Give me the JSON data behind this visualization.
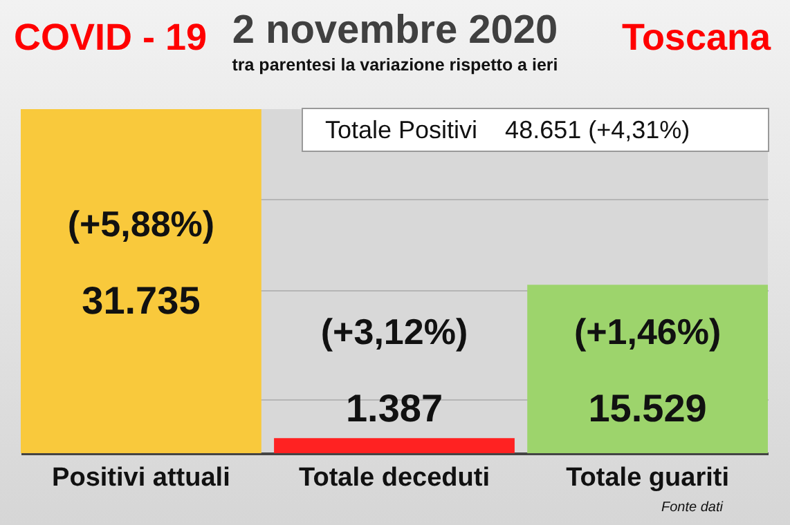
{
  "chart_data": {
    "type": "bar",
    "title": "2 novembre 2020",
    "subtitle": "tra parentesi la variazione rispetto a ieri",
    "categories": [
      "Positivi attuali",
      "Totale deceduti",
      "Totale guariti"
    ],
    "values": [
      31735,
      1387,
      15529
    ],
    "colors": [
      "#f9c93c",
      "#ff2222",
      "#9dd46c"
    ],
    "value_labels": [
      "31.735",
      "1.387",
      "15.529"
    ],
    "ylim": [
      0,
      31735
    ],
    "yticks": [
      {
        "value": 5000,
        "label": null
      },
      {
        "value": 15000,
        "label": null
      },
      {
        "value": 23500,
        "label": null
      }
    ],
    "grid": "y",
    "tick_labels": "x",
    "annotations": [
      "COVID - 19",
      "Toscana",
      "Totale Positivi    48.651 (+4,31%)",
      "Fonte dati",
      "(+5,88%)",
      "(+3,12%)",
      "(+1,46%)"
    ]
  }
}
